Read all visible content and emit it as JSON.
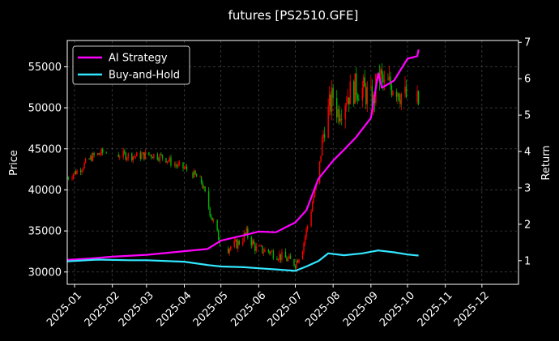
{
  "chart_data": {
    "type": "line",
    "title": "futures [PS2510.GFE]",
    "xlabel": "",
    "ylabel": "Price",
    "y2label": "Return",
    "grid": true,
    "legend_position": "top-left",
    "x_range": [
      "2024-12-26",
      "2025-12-31"
    ],
    "ylim": [
      28500,
      58200
    ],
    "y2lim": [
      0.35,
      7.05
    ],
    "x_ticks": [
      "2025-01",
      "2025-02",
      "2025-03",
      "2025-04",
      "2025-05",
      "2025-06",
      "2025-07",
      "2025-08",
      "2025-09",
      "2025-10",
      "2025-11",
      "2025-12"
    ],
    "y_ticks": [
      30000,
      35000,
      40000,
      45000,
      50000,
      55000
    ],
    "y2_ticks": [
      1,
      2,
      3,
      4,
      5,
      6,
      7
    ],
    "colors": {
      "background": "#000000",
      "grid": "#555555",
      "axis": "#ffffff",
      "up_candle": "#ff0000",
      "down_candle": "#00b400",
      "ai_strategy": "#ff00ff",
      "buy_and_hold": "#33e6ff"
    },
    "series": [
      {
        "name": "AI Strategy",
        "axis": "right",
        "color": "#ff00ff",
        "points": [
          [
            "2024-12-26",
            1.02
          ],
          [
            "2025-01-15",
            1.06
          ],
          [
            "2025-02-01",
            1.11
          ],
          [
            "2025-03-01",
            1.16
          ],
          [
            "2025-04-01",
            1.26
          ],
          [
            "2025-04-20",
            1.32
          ],
          [
            "2025-05-01",
            1.55
          ],
          [
            "2025-05-20",
            1.7
          ],
          [
            "2025-06-01",
            1.8
          ],
          [
            "2025-06-15",
            1.78
          ],
          [
            "2025-07-01",
            2.05
          ],
          [
            "2025-07-10",
            2.38
          ],
          [
            "2025-07-20",
            3.25
          ],
          [
            "2025-08-01",
            3.75
          ],
          [
            "2025-08-10",
            4.05
          ],
          [
            "2025-08-20",
            4.4
          ],
          [
            "2025-09-01",
            4.92
          ],
          [
            "2025-09-07",
            6.15
          ],
          [
            "2025-09-10",
            5.75
          ],
          [
            "2025-09-20",
            5.95
          ],
          [
            "2025-10-01",
            6.55
          ],
          [
            "2025-10-09",
            6.62
          ],
          [
            "2025-10-10",
            6.8
          ]
        ]
      },
      {
        "name": "Buy-and-Hold",
        "axis": "right",
        "color": "#33e6ff",
        "points": [
          [
            "2024-12-26",
            0.98
          ],
          [
            "2025-01-20",
            1.03
          ],
          [
            "2025-02-15",
            1.01
          ],
          [
            "2025-03-01",
            1.01
          ],
          [
            "2025-04-01",
            0.97
          ],
          [
            "2025-04-20",
            0.88
          ],
          [
            "2025-05-01",
            0.84
          ],
          [
            "2025-05-20",
            0.82
          ],
          [
            "2025-06-01",
            0.79
          ],
          [
            "2025-06-15",
            0.76
          ],
          [
            "2025-07-01",
            0.72
          ],
          [
            "2025-07-10",
            0.84
          ],
          [
            "2025-07-20",
            0.99
          ],
          [
            "2025-07-28",
            1.2
          ],
          [
            "2025-08-10",
            1.15
          ],
          [
            "2025-08-25",
            1.2
          ],
          [
            "2025-09-07",
            1.28
          ],
          [
            "2025-09-20",
            1.23
          ],
          [
            "2025-10-01",
            1.17
          ],
          [
            "2025-10-10",
            1.14
          ]
        ]
      }
    ],
    "candles": {
      "axis": "left",
      "up_color": "#ff0000",
      "down_color": "#00b400",
      "path": [
        [
          "2024-12-26",
          41500
        ],
        [
          "2025-01-05",
          42500
        ],
        [
          "2025-01-15",
          44000
        ],
        [
          "2025-01-25",
          44600
        ],
        [
          "2025-02-05",
          44300
        ],
        [
          "2025-02-20",
          44100
        ],
        [
          "2025-03-05",
          44300
        ],
        [
          "2025-03-15",
          44000
        ],
        [
          "2025-03-25",
          43000
        ],
        [
          "2025-04-05",
          42400
        ],
        [
          "2025-04-15",
          41000
        ],
        [
          "2025-04-22",
          37500
        ],
        [
          "2025-04-28",
          34500
        ],
        [
          "2025-05-05",
          32800
        ],
        [
          "2025-05-15",
          33500
        ],
        [
          "2025-05-22",
          34700
        ],
        [
          "2025-05-30",
          32800
        ],
        [
          "2025-06-10",
          32500
        ],
        [
          "2025-06-25",
          31500
        ],
        [
          "2025-07-01",
          31000
        ],
        [
          "2025-07-07",
          33000
        ],
        [
          "2025-07-13",
          37000
        ],
        [
          "2025-07-20",
          42000
        ],
        [
          "2025-07-25",
          48000
        ],
        [
          "2025-08-01",
          51500
        ],
        [
          "2025-08-05",
          49500
        ],
        [
          "2025-08-12",
          51500
        ],
        [
          "2025-08-20",
          52500
        ],
        [
          "2025-08-27",
          52000
        ],
        [
          "2025-09-03",
          50500
        ],
        [
          "2025-09-07",
          54500
        ],
        [
          "2025-09-12",
          52500
        ],
        [
          "2025-09-20",
          53000
        ],
        [
          "2025-09-27",
          51500
        ],
        [
          "2025-10-05",
          51000
        ],
        [
          "2025-10-10",
          50500
        ]
      ],
      "gaps": [
        [
          "2025-01-28",
          "2025-02-05"
        ],
        [
          "2025-04-04",
          "2025-04-07"
        ],
        [
          "2025-05-01",
          "2025-05-06"
        ],
        [
          "2025-10-01",
          "2025-10-08"
        ]
      ]
    }
  }
}
